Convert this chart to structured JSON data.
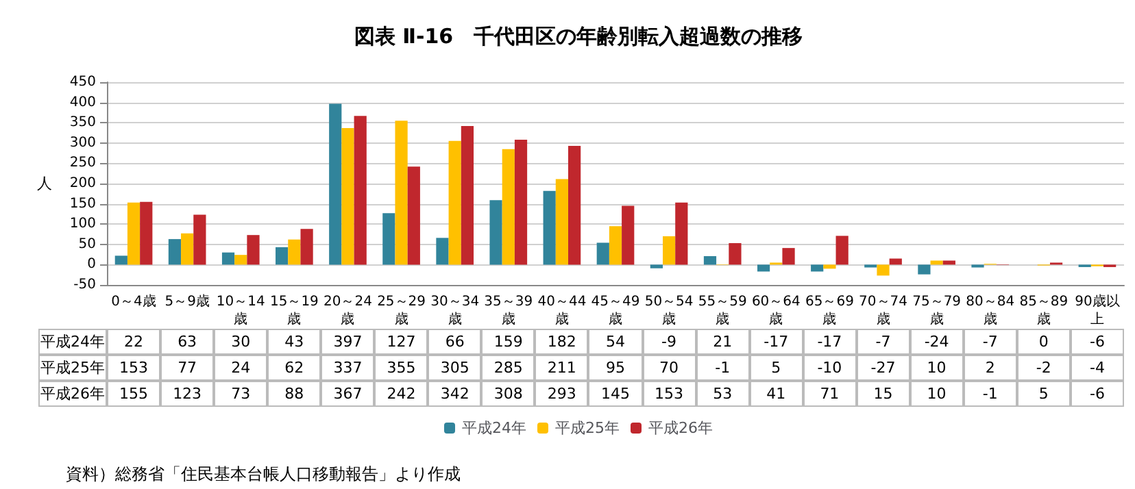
{
  "chart_data": {
    "type": "bar",
    "title": "図表 Ⅱ-16　千代田区の年齢別転入超過数の推移",
    "ylabel": "人",
    "categories": [
      "0～4歳",
      "5～9歳",
      "10～14歳",
      "15～19歳",
      "20～24歳",
      "25～29歳",
      "30～34歳",
      "35～39歳",
      "40～44歳",
      "45～49歳",
      "50～54歳",
      "55～59歳",
      "60～64歳",
      "65～69歳",
      "70～74歳",
      "75～79歳",
      "80～84歳",
      "85～89歳",
      "90歳以上"
    ],
    "series": [
      {
        "name": "平成24年",
        "color": "#31849b",
        "values": [
          22,
          63,
          30,
          43,
          397,
          127,
          66,
          159,
          182,
          54,
          -9,
          21,
          -17,
          -17,
          -7,
          -24,
          -7,
          0,
          -6
        ]
      },
      {
        "name": "平成25年",
        "color": "#ffc000",
        "values": [
          153,
          77,
          24,
          62,
          337,
          355,
          305,
          285,
          211,
          95,
          70,
          -1,
          5,
          -10,
          -27,
          10,
          2,
          -2,
          -4
        ]
      },
      {
        "name": "平成26年",
        "color": "#c0272d",
        "values": [
          155,
          123,
          73,
          88,
          367,
          242,
          342,
          308,
          293,
          145,
          153,
          53,
          41,
          71,
          15,
          10,
          -1,
          5,
          -6
        ]
      }
    ],
    "ylim": [
      -50,
      450
    ],
    "yticks": [
      -50,
      0,
      50,
      100,
      150,
      200,
      250,
      300,
      350,
      400,
      450
    ],
    "grid": "y",
    "legend": "bottom",
    "data_labels": true,
    "annotations": [
      "資料）総務省「住民基本台帳人口移動報告」より作成"
    ]
  }
}
